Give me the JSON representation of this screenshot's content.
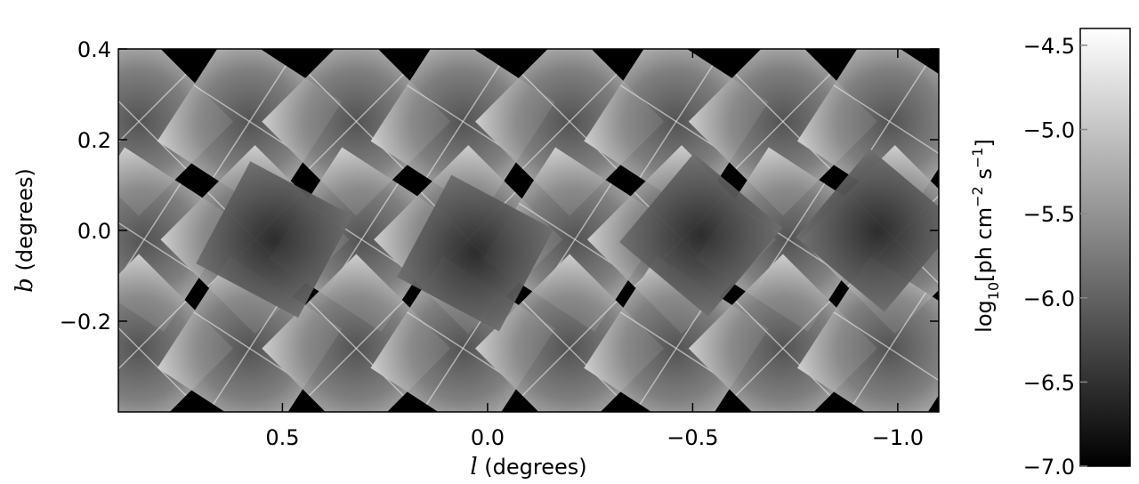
{
  "chart_data": {
    "type": "heatmap",
    "title": "",
    "xlabel": {
      "symbol": "l",
      "text": " (degrees)"
    },
    "ylabel": {
      "symbol": "b",
      "text": " (degrees)"
    },
    "xlim": [
      0.9,
      -1.1
    ],
    "ylim": [
      -0.4,
      0.4
    ],
    "x_ticks": [
      {
        "value": 0.5,
        "label": "0.5"
      },
      {
        "value": 0.0,
        "label": "0.0"
      },
      {
        "value": -0.5,
        "label": "−0.5"
      },
      {
        "value": -1.0,
        "label": "−1.0"
      }
    ],
    "y_ticks": [
      {
        "value": 0.4,
        "label": "0.4"
      },
      {
        "value": 0.2,
        "label": "0.2"
      },
      {
        "value": 0.0,
        "label": "0.0"
      },
      {
        "value": -0.2,
        "label": "−0.2"
      }
    ],
    "colorbar": {
      "label_parts": [
        "log",
        "10",
        "[ph cm",
        "−2",
        " s",
        "−1",
        "]"
      ],
      "range": [
        -7.0,
        -4.4
      ],
      "colormap": "grayscale",
      "low_color": "#000000",
      "high_color": "#ffffff",
      "ticks": [
        {
          "value": -4.5,
          "label": "−4.5"
        },
        {
          "value": -5.0,
          "label": "−5.0"
        },
        {
          "value": -5.5,
          "label": "−5.5"
        },
        {
          "value": -6.0,
          "label": "−6.0"
        },
        {
          "value": -6.5,
          "label": "−6.5"
        },
        {
          "value": -7.0,
          "label": "−7.0"
        }
      ]
    },
    "background_color": "#000000",
    "mosaic": {
      "tile_centers_l": [
        0.85,
        0.58,
        0.32,
        0.06,
        -0.2,
        -0.46,
        -0.72,
        -0.98
      ],
      "rows_b": [
        0.24,
        -0.02,
        -0.26
      ],
      "deep_exposures": [
        {
          "l": 0.03,
          "b": -0.05,
          "value": -6.3
        },
        {
          "l": 0.52,
          "b": -0.02,
          "value": -5.9
        },
        {
          "l": -0.52,
          "b": -0.01,
          "value": -5.85
        },
        {
          "l": -0.95,
          "b": 0.0,
          "value": -5.8
        }
      ]
    }
  }
}
